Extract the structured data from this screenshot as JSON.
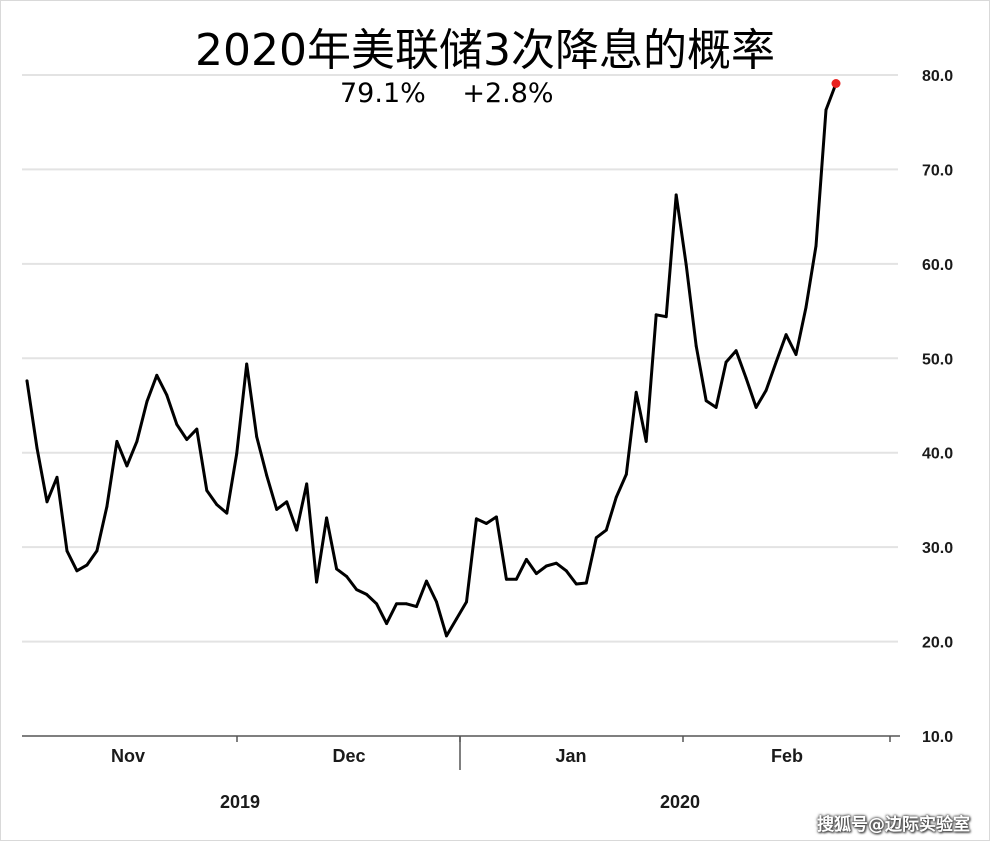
{
  "chart_data": {
    "type": "line",
    "title": "2020年美联储3次降息的概率",
    "subtitle": {
      "value": "79.1%",
      "change": "+2.8%"
    },
    "ylim": [
      10,
      80
    ],
    "yticks": [
      "80.0",
      "70.0",
      "60.0",
      "50.0",
      "40.0",
      "30.0",
      "20.0",
      "10.0"
    ],
    "months": [
      "Nov",
      "Dec",
      "Jan",
      "Feb"
    ],
    "years": [
      "2019",
      "2020"
    ],
    "grid": true,
    "series": [
      {
        "color": "#000000",
        "values": [
          47.6,
          40.5,
          34.8,
          37.4,
          29.6,
          27.5,
          28.1,
          29.6,
          34.3,
          41.2,
          38.6,
          41.2,
          45.4,
          48.2,
          46.1,
          43.0,
          41.4,
          42.5,
          36.0,
          34.5,
          33.6,
          39.9,
          49.4,
          41.7,
          37.6,
          34.0,
          34.8,
          31.8,
          36.7,
          26.3,
          33.1,
          27.7,
          26.9,
          25.5,
          25.0,
          24.0,
          21.9,
          24.0,
          24.0,
          23.7,
          26.4,
          24.2,
          20.6,
          22.4,
          24.2,
          33.0,
          32.5,
          33.2,
          26.6,
          26.6,
          28.7,
          27.2,
          28.0,
          28.3,
          27.5,
          26.1,
          26.2,
          31.0,
          31.8,
          35.3,
          37.7,
          46.4,
          41.2,
          54.6,
          54.4,
          67.3,
          59.9,
          51.3,
          45.5,
          44.8,
          49.6,
          50.8,
          47.9,
          44.8,
          46.6,
          49.6,
          52.5,
          50.4,
          55.4,
          61.9,
          76.3,
          79.1
        ],
        "highlight_last": true,
        "highlight_color": "#e8211f"
      }
    ]
  },
  "watermark": "搜狐号@边际实验室"
}
